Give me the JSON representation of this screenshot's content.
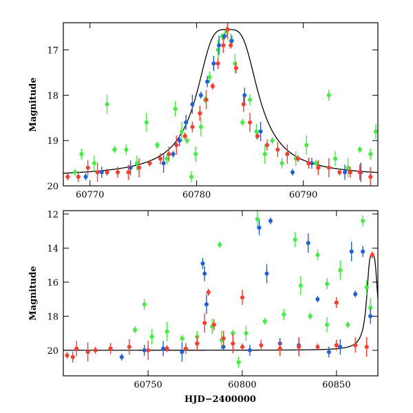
{
  "colors": {
    "green": "#3ef03e",
    "blue": "#1e5fe0",
    "red": "#ff3a2a",
    "model": "#000000"
  },
  "chart_data": [
    {
      "type": "scatter",
      "title": "",
      "xlabel": "",
      "ylabel": "Magnitude",
      "xlim": [
        60767.5,
        60797
      ],
      "ylim": [
        20,
        16.4
      ],
      "x_ticks": [
        60770,
        60780,
        60790
      ],
      "y_ticks": [
        17,
        18,
        19,
        20
      ],
      "grid": false,
      "series": [
        {
          "color": "green",
          "points": [
            [
              60768.6,
              19.7
            ],
            [
              60769.2,
              19.3
            ],
            [
              60770.4,
              19.5
            ],
            [
              60771.6,
              18.2
            ],
            [
              60772.3,
              19.2
            ],
            [
              60773.4,
              19.2
            ],
            [
              60774.4,
              19.5
            ],
            [
              60775.3,
              18.6
            ],
            [
              60776.3,
              19.1
            ],
            [
              60777.2,
              19.4
            ],
            [
              60778.0,
              18.3
            ],
            [
              60778.6,
              18.8
            ],
            [
              60779.1,
              19.0
            ],
            [
              60779.5,
              19.8
            ],
            [
              60779.9,
              19.3
            ],
            [
              60780.4,
              18.7
            ],
            [
              60780.8,
              18.1
            ],
            [
              60781.2,
              17.6
            ],
            [
              60781.6,
              17.3
            ],
            [
              60782.0,
              17.0
            ],
            [
              60782.4,
              16.7
            ],
            [
              60782.8,
              16.6
            ],
            [
              60783.2,
              16.8
            ],
            [
              60783.6,
              17.3
            ],
            [
              60784.3,
              18.6
            ],
            [
              60785.0,
              18.1
            ],
            [
              60785.6,
              18.8
            ],
            [
              60786.4,
              19.3
            ],
            [
              60787.1,
              19.0
            ],
            [
              60788.0,
              19.5
            ],
            [
              60789.3,
              19.4
            ],
            [
              60790.3,
              19.1
            ],
            [
              60791.2,
              19.5
            ],
            [
              60792.4,
              18.0
            ],
            [
              60793.0,
              19.4
            ],
            [
              60794.2,
              19.6
            ],
            [
              60795.3,
              19.2
            ],
            [
              60796.3,
              19.3
            ],
            [
              60796.8,
              18.8
            ]
          ]
        },
        {
          "color": "blue",
          "points": [
            [
              60769.6,
              19.8
            ],
            [
              60771.1,
              19.7
            ],
            [
              60773.8,
              19.6
            ],
            [
              60776.9,
              19.5
            ],
            [
              60777.8,
              19.3
            ],
            [
              60778.4,
              19.0
            ],
            [
              60779.0,
              18.6
            ],
            [
              60779.6,
              18.2
            ],
            [
              60780.4,
              18.0
            ],
            [
              60781.0,
              17.7
            ],
            [
              60781.6,
              17.3
            ],
            [
              60782.1,
              16.9
            ],
            [
              60782.6,
              16.7
            ],
            [
              60783.3,
              16.8
            ],
            [
              60784.5,
              18.0
            ],
            [
              60786.0,
              18.8
            ],
            [
              60789.0,
              19.7
            ],
            [
              60790.8,
              19.5
            ],
            [
              60793.9,
              19.7
            ],
            [
              60795.4,
              19.7
            ]
          ]
        },
        {
          "color": "red",
          "points": [
            [
              60767.9,
              19.8
            ],
            [
              60768.9,
              19.8
            ],
            [
              60769.8,
              19.6
            ],
            [
              60770.7,
              19.7
            ],
            [
              60771.6,
              19.7
            ],
            [
              60772.6,
              19.7
            ],
            [
              60773.6,
              19.7
            ],
            [
              60774.6,
              19.6
            ],
            [
              60775.6,
              19.5
            ],
            [
              60776.6,
              19.4
            ],
            [
              60777.4,
              19.3
            ],
            [
              60778.1,
              19.1
            ],
            [
              60778.9,
              18.9
            ],
            [
              60779.6,
              18.7
            ],
            [
              60780.3,
              18.4
            ],
            [
              60780.9,
              18.1
            ],
            [
              60781.5,
              17.8
            ],
            [
              60782.0,
              17.3
            ],
            [
              60782.5,
              16.9
            ],
            [
              60782.9,
              16.55
            ],
            [
              60783.2,
              16.9
            ],
            [
              60783.7,
              17.4
            ],
            [
              60784.4,
              18.2
            ],
            [
              60785.0,
              18.6
            ],
            [
              60785.7,
              18.9
            ],
            [
              60786.6,
              19.1
            ],
            [
              60787.6,
              19.2
            ],
            [
              60788.5,
              19.3
            ],
            [
              60789.5,
              19.4
            ],
            [
              60790.5,
              19.5
            ],
            [
              60791.4,
              19.6
            ],
            [
              60792.4,
              19.6
            ],
            [
              60793.4,
              19.7
            ],
            [
              60794.4,
              19.7
            ],
            [
              60795.3,
              19.7
            ],
            [
              60796.3,
              19.8
            ]
          ]
        }
      ]
    },
    {
      "type": "scatter",
      "title": "",
      "xlabel": "HJD−2400000",
      "ylabel": "Magnitude",
      "xlim": [
        60705,
        60872
      ],
      "ylim": [
        21.5,
        11.8
      ],
      "x_ticks": [
        60750,
        60800,
        60850
      ],
      "y_ticks": [
        12,
        14,
        16,
        18,
        20
      ],
      "grid": false,
      "series": [
        {
          "color": "green",
          "points": [
            [
              60743,
              18.8
            ],
            [
              60748,
              17.3
            ],
            [
              60752,
              19.2
            ],
            [
              60760,
              18.9
            ],
            [
              60768,
              19.3
            ],
            [
              60776,
              19.2
            ],
            [
              60784,
              18.6
            ],
            [
              60789,
              19.4
            ],
            [
              60795,
              19.0
            ],
            [
              60798,
              20.7
            ],
            [
              60802,
              19.0
            ],
            [
              60808,
              12.3
            ],
            [
              60812,
              18.3
            ],
            [
              60822,
              17.9
            ],
            [
              60828,
              13.5
            ],
            [
              60831,
              16.2
            ],
            [
              60836,
              18.0
            ],
            [
              60840,
              14.4
            ],
            [
              60845,
              18.5
            ],
            [
              60852,
              15.3
            ],
            [
              60856,
              18.5
            ],
            [
              60864,
              12.4
            ],
            [
              60866,
              16.3
            ],
            [
              60868,
              17.5
            ],
            [
              60788,
              13.8
            ],
            [
              60845,
              16.1
            ]
          ]
        },
        {
          "color": "blue",
          "points": [
            [
              60736,
              20.4
            ],
            [
              60748,
              20.0
            ],
            [
              60758,
              19.9
            ],
            [
              60768,
              20.1
            ],
            [
              60776,
              19.6
            ],
            [
              60779,
              14.9
            ],
            [
              60780,
              15.5
            ],
            [
              60781,
              17.3
            ],
            [
              60790,
              19.8
            ],
            [
              60804,
              20.0
            ],
            [
              60809,
              12.8
            ],
            [
              60813,
              15.5
            ],
            [
              60815,
              12.4
            ],
            [
              60820,
              19.6
            ],
            [
              60830,
              19.7
            ],
            [
              60835,
              13.7
            ],
            [
              60840,
              17.0
            ],
            [
              60846,
              20.1
            ],
            [
              60852,
              19.8
            ],
            [
              60858,
              14.2
            ],
            [
              60860,
              16.7
            ],
            [
              60864,
              14.2
            ],
            [
              60868,
              18.0
            ]
          ]
        },
        {
          "color": "red",
          "points": [
            [
              60707,
              20.3
            ],
            [
              60710,
              20.4
            ],
            [
              60712,
              19.9
            ],
            [
              60718,
              20.1
            ],
            [
              60722,
              20.0
            ],
            [
              60730,
              19.9
            ],
            [
              60740,
              19.8
            ],
            [
              60750,
              20.0
            ],
            [
              60760,
              19.9
            ],
            [
              60770,
              19.9
            ],
            [
              60776,
              19.6
            ],
            [
              60780,
              18.4
            ],
            [
              60782,
              16.6
            ],
            [
              60785,
              18.5
            ],
            [
              60790,
              19.3
            ],
            [
              60795,
              19.6
            ],
            [
              60800,
              19.8
            ],
            [
              60810,
              19.7
            ],
            [
              60820,
              19.9
            ],
            [
              60830,
              19.8
            ],
            [
              60840,
              19.8
            ],
            [
              60850,
              19.7
            ],
            [
              60860,
              19.7
            ],
            [
              60866,
              19.8
            ],
            [
              60869,
              14.4
            ],
            [
              60850,
              17.2
            ],
            [
              60800,
              16.9
            ]
          ]
        }
      ]
    }
  ]
}
